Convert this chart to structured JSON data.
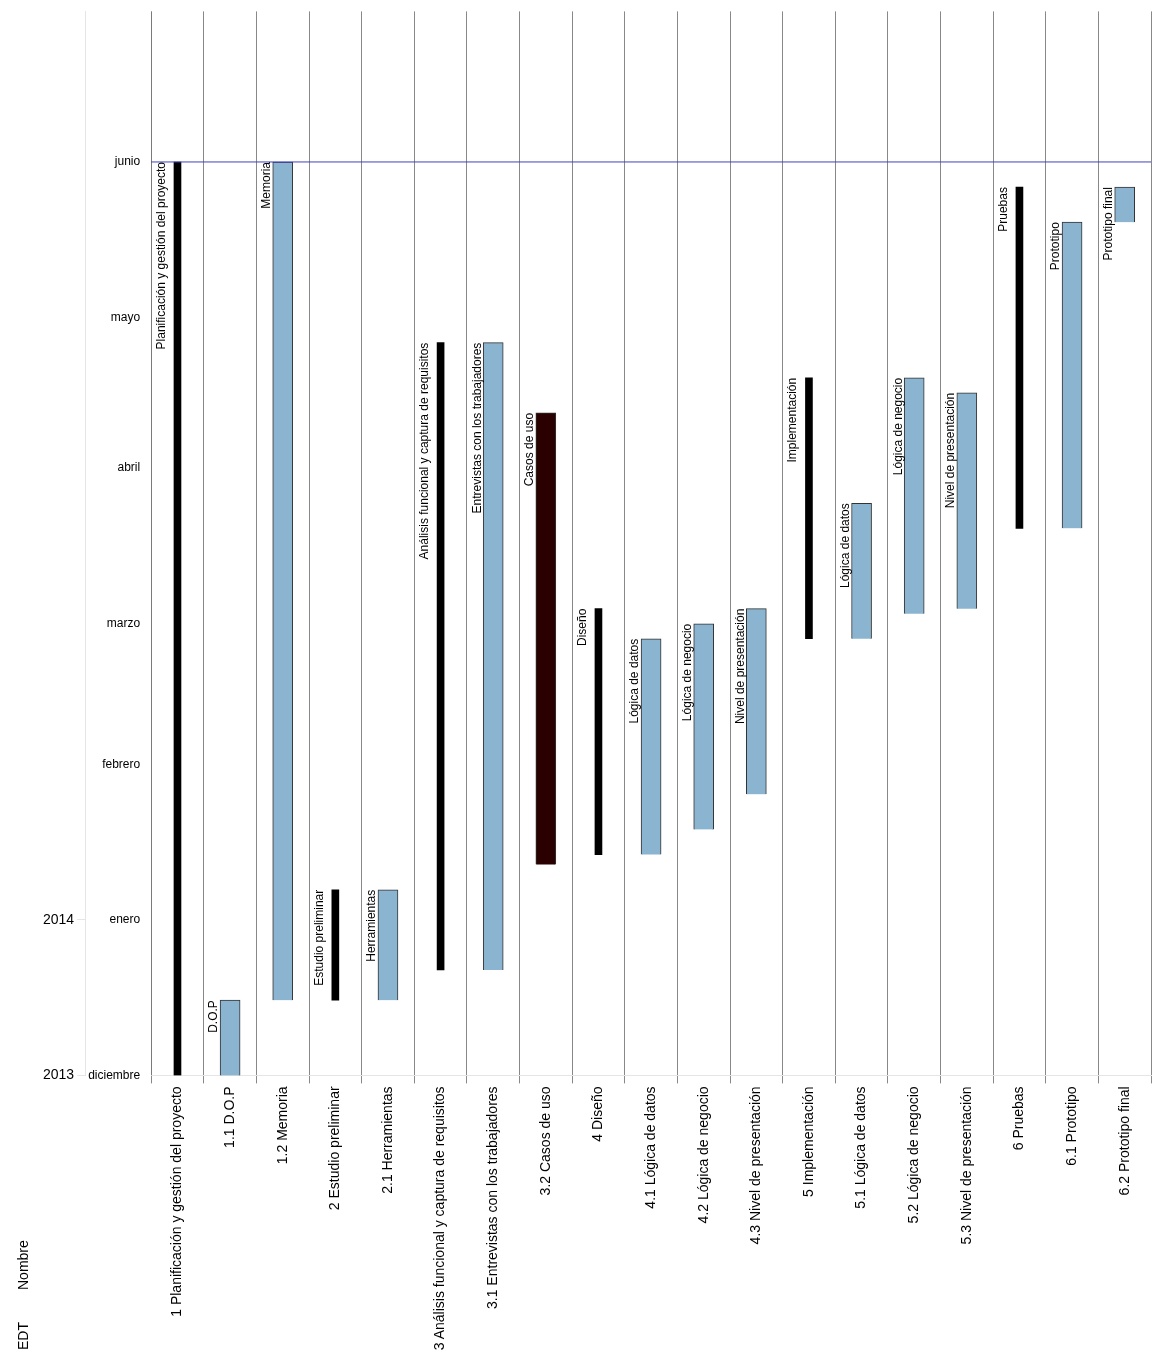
{
  "chart_data": {
    "type": "bar",
    "categories": [
      "1 Planificación y gestión del proyecto",
      "1.1 D.O.P",
      "1.2 Memoria",
      "2 Estudio preliminar",
      "2.1 Herramientas",
      "3 Análisis funcional y captura de requisitos",
      "3.1 Entrevistas con los trabajadores",
      "3.2 Casos de uso",
      "4 Diseño",
      "4.1 Lógica de datos",
      "4.2 Lógica de negocio",
      "4.3 Nivel de presentación",
      "5 Implementación",
      "5.1 Lógica de datos",
      "5.2 Lógica de negocio",
      "5.3 Nivel de presentación",
      "6 Pruebas",
      "6.1 Prototipo",
      "6.2 Prototipo final"
    ],
    "series": [
      {
        "color": "#000000",
        "base": [
          16040,
          null,
          null,
          16055,
          null,
          16061,
          null,
          null,
          16084,
          null,
          null,
          null,
          16127,
          null,
          null,
          null,
          16149,
          null,
          null
        ],
        "values": [
          182,
          null,
          null,
          22,
          null,
          125,
          null,
          null,
          49,
          null,
          null,
          null,
          52,
          null,
          null,
          null,
          68,
          null,
          null
        ]
      },
      {
        "colors": [
          "#8ab4cf",
          "#8ab4cf",
          "#8ab4cf",
          "#8ab4cf",
          "#8ab4cf",
          "#8ab4cf",
          "#8ab4cf",
          "#2a0000",
          "#8ab4cf",
          "#8ab4cf",
          "#8ab4cf",
          "#8ab4cf",
          "#8ab4cf",
          "#8ab4cf",
          "#8ab4cf",
          "#8ab4cf",
          "#8ab4cf",
          "#8ab4cf",
          "#8ab4cf"
        ],
        "base": [
          null,
          16040,
          16055,
          null,
          16055,
          null,
          16061,
          16082,
          null,
          16084,
          16089,
          16096,
          null,
          16127,
          16132,
          16133,
          null,
          16149,
          16210
        ],
        "values": [
          null,
          15,
          167,
          null,
          22,
          null,
          125,
          90,
          null,
          43,
          41,
          37,
          null,
          27,
          47,
          43,
          null,
          61,
          7
        ]
      }
    ],
    "ylim": [
      "2013-12-01",
      "2014-07-01"
    ],
    "yticks": [
      {
        "value": "2013-12-01",
        "label": "diciembre"
      },
      {
        "value": "2014-01-01",
        "label": "enero"
      },
      {
        "value": "2014-02-01",
        "label": "febrero"
      },
      {
        "value": "2014-03-01",
        "label": "marzo"
      },
      {
        "value": "2014-04-01",
        "label": "abril"
      },
      {
        "value": "2014-05-01",
        "label": "mayo"
      },
      {
        "value": "2014-06-01",
        "label": "junio"
      }
    ],
    "y2lim": [
      "2013-12-01",
      "2014-07-01"
    ],
    "y2ticks": [
      {
        "value": "2013-12-01",
        "label": "2013"
      },
      {
        "value": "2014-01-01",
        "label": "2014"
      }
    ],
    "grid": "x",
    "legend": false,
    "ref_lines": [
      {
        "axis": "y",
        "value": "2014-06-01",
        "color": "#4040c0"
      }
    ],
    "annotations": [
      "EDT",
      "Nombre",
      {
        "text": "Planificación y gestión del proyecto",
        "x": "1 Planificación y gestión del proyecto",
        "y": "2014-06-01"
      },
      {
        "text": "D.O.P",
        "x": "1.1 D.O.P",
        "y": "2013-12-16"
      },
      {
        "text": "Memoria",
        "x": "1.2 Memoria",
        "y": "2014-06-01"
      },
      {
        "text": "Estudio preliminar",
        "x": "2 Estudio preliminar",
        "y": "2014-01-07"
      },
      {
        "text": "Herramientas",
        "x": "2.1 Herramientas",
        "y": "2014-01-07"
      },
      {
        "text": "Análisis funcional y captura de requisitos",
        "x": "3 Análisis funcional y captura de requisitos",
        "y": "2014-04-26"
      },
      {
        "text": "Entrevistas con los trabajadores",
        "x": "3.1 Entrevistas con los trabajadores",
        "y": "2014-04-26"
      },
      {
        "text": "Casos de uso",
        "x": "3.2 Casos de uso",
        "y": "2014-04-12"
      },
      {
        "text": "Diseño",
        "x": "4 Diseño",
        "y": "2014-03-04"
      },
      {
        "text": "Lógica de datos",
        "x": "4.1 Lógica de datos",
        "y": "2014-02-26"
      },
      {
        "text": "Lógica de negocio",
        "x": "4.2 Lógica de negocio",
        "y": "2014-03-01"
      },
      {
        "text": "Nivel de presentación",
        "x": "4.3 Nivel de presentación",
        "y": "2014-03-04"
      },
      {
        "text": "Implementación",
        "x": "5 Implementación",
        "y": "2014-04-19"
      },
      {
        "text": "Lógica de datos",
        "x": "5.1 Lógica de datos",
        "y": "2014-03-25"
      },
      {
        "text": "Lógica de negocio",
        "x": "5.2 Lógica de negocio",
        "y": "2014-04-19"
      },
      {
        "text": "Nivel de presentación",
        "x": "5.3 Nivel de presentación",
        "y": "2014-04-16"
      },
      {
        "text": "Pruebas",
        "x": "6 Pruebas",
        "y": "2014-05-27"
      },
      {
        "text": "Prototipo",
        "x": "6.1 Prototipo",
        "y": "2014-05-20"
      },
      {
        "text": "Prototipo final",
        "x": "6.2 Prototipo final",
        "y": "2014-05-27"
      }
    ]
  }
}
